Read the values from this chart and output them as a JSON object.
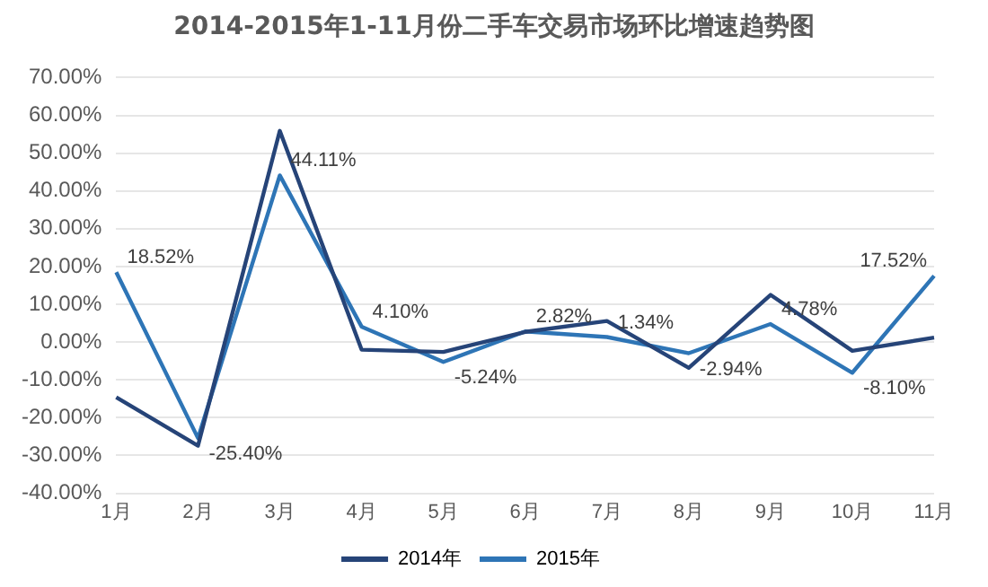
{
  "chart_data": {
    "type": "line",
    "title": "2014-2015年1-11月份二手车交易市场环比增速趋势图",
    "categories": [
      "1月",
      "2月",
      "3月",
      "4月",
      "5月",
      "6月",
      "7月",
      "8月",
      "9月",
      "10月",
      "11月"
    ],
    "series": [
      {
        "name": "2014年",
        "color": "#264478",
        "values": [
          -14.6,
          -27.4,
          55.9,
          -2.0,
          -2.6,
          2.7,
          5.6,
          -6.8,
          12.5,
          -2.3,
          1.2
        ]
      },
      {
        "name": "2015年",
        "color": "#2e75b6",
        "values": [
          18.52,
          -25.4,
          44.11,
          4.1,
          -5.24,
          2.82,
          1.34,
          -2.94,
          4.78,
          -8.1,
          17.52
        ],
        "value_labels": [
          "18.52%",
          "-25.40%",
          "44.11%",
          "4.10%",
          "-5.24%",
          "2.82%",
          "1.34%",
          "-2.94%",
          "4.78%",
          "-8.10%",
          "17.52%"
        ]
      }
    ],
    "ylim": [
      -40,
      70
    ],
    "yticks": [
      {
        "value": -40,
        "label": "-40.00%"
      },
      {
        "value": -30,
        "label": "-30.00%"
      },
      {
        "value": -20,
        "label": "-20.00%"
      },
      {
        "value": -10,
        "label": "-10.00%"
      },
      {
        "value": 0,
        "label": "0.00%"
      },
      {
        "value": 10,
        "label": "10.00%"
      },
      {
        "value": 20,
        "label": "20.00%"
      },
      {
        "value": 30,
        "label": "30.00%"
      },
      {
        "value": 40,
        "label": "40.00%"
      },
      {
        "value": 50,
        "label": "50.00%"
      },
      {
        "value": 60,
        "label": "60.00%"
      },
      {
        "value": 70,
        "label": "70.00%"
      }
    ],
    "grid": "y",
    "legend": "bottom",
    "marker": "none",
    "line_style": "solid"
  }
}
